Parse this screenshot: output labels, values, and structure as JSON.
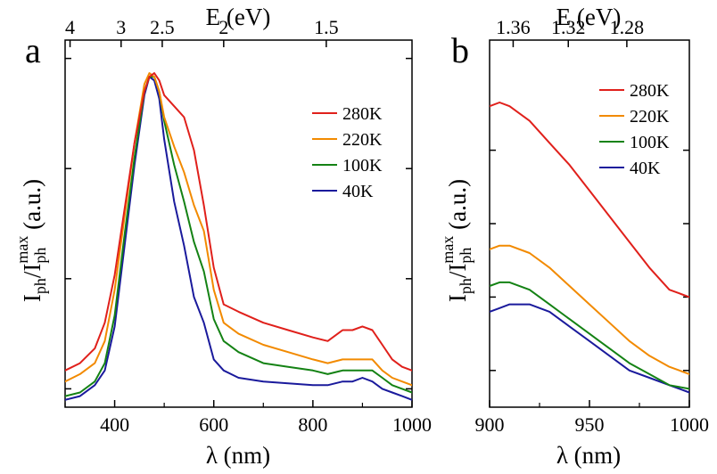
{
  "colors": {
    "280K": "#e0201b",
    "220K": "#f28a00",
    "100K": "#148214",
    "40K": "#1a1a9c",
    "axis": "#000000"
  },
  "chart_data": [
    {
      "panel_label": "a",
      "type": "line",
      "xlabel": "λ (nm)",
      "top_xlabel": "E (eV)",
      "ylabel": {
        "main": "I",
        "sub1": "ph",
        "slash": "/I",
        "sub2": "ph",
        "sup": "max",
        "unit": " (a.u.)"
      },
      "xlim": [
        300,
        1000
      ],
      "ylim": [
        0,
        1
      ],
      "x_ticks": [
        {
          "value": 400,
          "label": "400"
        },
        {
          "value": 600,
          "label": "600"
        },
        {
          "value": 800,
          "label": "800"
        },
        {
          "value": 1000,
          "label": "1000"
        }
      ],
      "x_minor_ticks": [
        300,
        500,
        700,
        900
      ],
      "top_ticks": [
        {
          "wavelength": 310,
          "label": "4"
        },
        {
          "wavelength": 413,
          "label": "3"
        },
        {
          "wavelength": 496,
          "label": "2.5"
        },
        {
          "wavelength": 620,
          "label": "2"
        },
        {
          "wavelength": 827,
          "label": "1.5"
        }
      ],
      "y_ticks": [
        0.05,
        0.35,
        0.65,
        0.95
      ],
      "legend": [
        "280K",
        "220K",
        "100K",
        "40K"
      ],
      "series": [
        {
          "name": "280K",
          "x": [
            300,
            330,
            360,
            380,
            400,
            420,
            440,
            460,
            470,
            480,
            490,
            500,
            520,
            540,
            560,
            580,
            600,
            620,
            650,
            700,
            750,
            800,
            830,
            860,
            880,
            900,
            920,
            940,
            960,
            980,
            1000
          ],
          "y": [
            0.1,
            0.12,
            0.16,
            0.23,
            0.36,
            0.54,
            0.72,
            0.86,
            0.9,
            0.91,
            0.89,
            0.85,
            0.82,
            0.79,
            0.7,
            0.55,
            0.38,
            0.28,
            0.26,
            0.23,
            0.21,
            0.19,
            0.18,
            0.21,
            0.21,
            0.22,
            0.21,
            0.17,
            0.13,
            0.11,
            0.1
          ]
        },
        {
          "name": "220K",
          "x": [
            300,
            330,
            360,
            380,
            400,
            420,
            440,
            460,
            470,
            480,
            490,
            500,
            520,
            540,
            560,
            580,
            600,
            620,
            650,
            700,
            750,
            800,
            830,
            860,
            880,
            900,
            920,
            940,
            960,
            980,
            1000
          ],
          "y": [
            0.07,
            0.09,
            0.12,
            0.18,
            0.32,
            0.52,
            0.72,
            0.88,
            0.91,
            0.9,
            0.86,
            0.79,
            0.71,
            0.64,
            0.55,
            0.48,
            0.32,
            0.23,
            0.2,
            0.17,
            0.15,
            0.13,
            0.12,
            0.13,
            0.13,
            0.13,
            0.13,
            0.1,
            0.08,
            0.07,
            0.06
          ]
        },
        {
          "name": "100K",
          "x": [
            300,
            330,
            360,
            380,
            400,
            420,
            440,
            460,
            470,
            480,
            490,
            500,
            520,
            540,
            560,
            580,
            600,
            620,
            650,
            700,
            750,
            800,
            830,
            860,
            880,
            900,
            920,
            940,
            960,
            980,
            1000
          ],
          "y": [
            0.03,
            0.04,
            0.07,
            0.12,
            0.25,
            0.47,
            0.68,
            0.86,
            0.9,
            0.9,
            0.86,
            0.78,
            0.66,
            0.56,
            0.45,
            0.37,
            0.24,
            0.18,
            0.15,
            0.12,
            0.11,
            0.1,
            0.09,
            0.1,
            0.1,
            0.1,
            0.1,
            0.08,
            0.06,
            0.05,
            0.04
          ]
        },
        {
          "name": "40K",
          "x": [
            300,
            330,
            360,
            380,
            400,
            420,
            440,
            460,
            470,
            480,
            490,
            500,
            520,
            540,
            560,
            580,
            600,
            620,
            650,
            700,
            750,
            800,
            830,
            860,
            880,
            900,
            920,
            940,
            960,
            980,
            1000
          ],
          "y": [
            0.02,
            0.03,
            0.06,
            0.1,
            0.22,
            0.44,
            0.66,
            0.85,
            0.9,
            0.89,
            0.84,
            0.73,
            0.56,
            0.44,
            0.3,
            0.23,
            0.13,
            0.1,
            0.08,
            0.07,
            0.065,
            0.06,
            0.06,
            0.07,
            0.07,
            0.08,
            0.07,
            0.05,
            0.04,
            0.03,
            0.02
          ]
        }
      ]
    },
    {
      "panel_label": "b",
      "type": "line",
      "xlabel": "λ (nm)",
      "top_xlabel": "E (eV)",
      "ylabel": {
        "main": "I",
        "sub1": "ph",
        "slash": "/I",
        "sub2": "ph",
        "sup": "max",
        "unit": " (a.u.)"
      },
      "xlim": [
        900,
        1000
      ],
      "ylim": [
        0,
        1
      ],
      "x_ticks": [
        {
          "value": 900,
          "label": "900"
        },
        {
          "value": 950,
          "label": "950"
        },
        {
          "value": 1000,
          "label": "1000"
        }
      ],
      "x_minor_ticks": [
        925,
        975
      ],
      "top_ticks": [
        {
          "wavelength": 911.8,
          "label": "1.36"
        },
        {
          "wavelength": 939.4,
          "label": "1.32"
        },
        {
          "wavelength": 968.7,
          "label": "1.28"
        }
      ],
      "y_ticks": [
        0.1,
        0.3,
        0.5,
        0.7
      ],
      "legend": [
        "280K",
        "220K",
        "100K",
        "40K"
      ],
      "series": [
        {
          "name": "280K",
          "x": [
            900,
            905,
            910,
            920,
            930,
            940,
            950,
            960,
            970,
            980,
            990,
            1000
          ],
          "y": [
            0.82,
            0.83,
            0.82,
            0.78,
            0.72,
            0.66,
            0.59,
            0.52,
            0.45,
            0.38,
            0.32,
            0.3
          ]
        },
        {
          "name": "220K",
          "x": [
            900,
            905,
            910,
            920,
            930,
            940,
            950,
            960,
            970,
            980,
            990,
            1000
          ],
          "y": [
            0.43,
            0.44,
            0.44,
            0.42,
            0.38,
            0.33,
            0.28,
            0.23,
            0.18,
            0.14,
            0.11,
            0.09
          ]
        },
        {
          "name": "100K",
          "x": [
            900,
            905,
            910,
            920,
            930,
            940,
            950,
            960,
            970,
            980,
            990,
            1000
          ],
          "y": [
            0.33,
            0.34,
            0.34,
            0.32,
            0.28,
            0.24,
            0.2,
            0.16,
            0.12,
            0.09,
            0.06,
            0.05
          ]
        },
        {
          "name": "40K",
          "x": [
            900,
            905,
            910,
            915,
            920,
            930,
            940,
            950,
            960,
            970,
            980,
            990,
            1000
          ],
          "y": [
            0.26,
            0.27,
            0.28,
            0.28,
            0.28,
            0.26,
            0.22,
            0.18,
            0.14,
            0.1,
            0.08,
            0.06,
            0.04
          ]
        }
      ]
    }
  ]
}
